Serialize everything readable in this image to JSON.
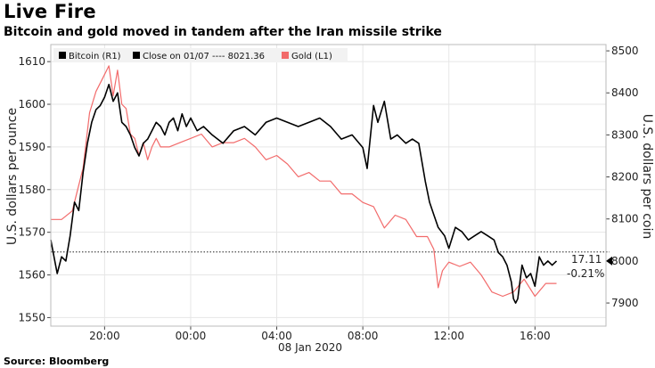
{
  "header": {
    "title": "Live Fire",
    "subtitle": "Bitcoin and gold moved in tandem after the Iran missile strike"
  },
  "footer": {
    "source": "Source: Bloomberg"
  },
  "colors": {
    "bitcoin": "#000000",
    "gold": "#f26b6b",
    "grid": "#e6e6e6",
    "axis": "#444444",
    "legend_bg": "#f2f2f2"
  },
  "legend": {
    "bitcoin": "Bitcoin (R1)",
    "close": "Close on 01/07 ---- 8021.36",
    "gold": "Gold (L1)"
  },
  "annotations": {
    "change": "17.11",
    "change_pct": "-0.21%"
  },
  "chart_data": {
    "type": "line",
    "title": "Live Fire",
    "subtitle": "Bitcoin and gold moved in tandem after the Iran missile strike",
    "x_unit": "hours since 00:00 on 08 Jan 2020 (negative = 07 Jan)",
    "xlim": [
      -6.5,
      19.3
    ],
    "x_ticks": [
      -4,
      0,
      4,
      8,
      12,
      16
    ],
    "x_tick_labels": [
      "20:00",
      "00:00",
      "04:00",
      "08:00",
      "12:00",
      "16:00"
    ],
    "x_date_label": "08 Jan 2020",
    "left_axis": {
      "label": "U.S. dollars per ounce",
      "ylim": [
        1548,
        1614
      ],
      "ticks": [
        1550,
        1560,
        1570,
        1580,
        1590,
        1600,
        1610
      ]
    },
    "right_axis": {
      "label": "U.S. dollars per coin",
      "ylim": [
        7845,
        8515
      ],
      "ticks": [
        7900,
        8000,
        8100,
        8200,
        8300,
        8400,
        8500
      ]
    },
    "reference_line": {
      "axis": "right",
      "value": 8021.36,
      "label": "Close on 01/07"
    },
    "series": [
      {
        "name": "Bitcoin (R1)",
        "axis": "right",
        "color": "#000000",
        "x": [
          -6.5,
          -6.2,
          -6.0,
          -5.8,
          -5.6,
          -5.4,
          -5.2,
          -5.0,
          -4.8,
          -4.6,
          -4.4,
          -4.2,
          -4.0,
          -3.8,
          -3.6,
          -3.4,
          -3.2,
          -3.0,
          -2.8,
          -2.6,
          -2.4,
          -2.2,
          -2.0,
          -1.8,
          -1.6,
          -1.4,
          -1.2,
          -1.0,
          -0.8,
          -0.6,
          -0.4,
          -0.2,
          0.0,
          0.3,
          0.6,
          1.0,
          1.5,
          2.0,
          2.5,
          3.0,
          3.5,
          4.0,
          4.5,
          5.0,
          5.5,
          6.0,
          6.5,
          7.0,
          7.5,
          8.0,
          8.2,
          8.5,
          8.7,
          9.0,
          9.3,
          9.6,
          10.0,
          10.3,
          10.6,
          10.9,
          11.1,
          11.3,
          11.5,
          11.8,
          12.0,
          12.3,
          12.6,
          12.9,
          13.2,
          13.5,
          13.8,
          14.1,
          14.3,
          14.5,
          14.7,
          14.9,
          15.0,
          15.1,
          15.2,
          15.4,
          15.6,
          15.8,
          16.0,
          16.2,
          16.4,
          16.6,
          16.8,
          17.0
        ],
        "y": [
          8050,
          7970,
          8010,
          8000,
          8060,
          8140,
          8120,
          8210,
          8280,
          8330,
          8360,
          8370,
          8390,
          8420,
          8380,
          8400,
          8330,
          8320,
          8300,
          8270,
          8250,
          8280,
          8290,
          8310,
          8330,
          8320,
          8300,
          8330,
          8340,
          8310,
          8350,
          8320,
          8340,
          8310,
          8320,
          8300,
          8280,
          8310,
          8320,
          8300,
          8330,
          8340,
          8330,
          8320,
          8330,
          8340,
          8320,
          8290,
          8300,
          8270,
          8220,
          8370,
          8330,
          8380,
          8290,
          8300,
          8280,
          8290,
          8280,
          8190,
          8140,
          8110,
          8080,
          8060,
          8030,
          8080,
          8070,
          8050,
          8060,
          8070,
          8060,
          8050,
          8020,
          8010,
          7990,
          7950,
          7910,
          7900,
          7910,
          7990,
          7960,
          7970,
          7940,
          8010,
          7990,
          8000,
          7990,
          8000
        ]
      },
      {
        "name": "Gold (L1)",
        "axis": "left",
        "color": "#f26b6b",
        "x": [
          -6.5,
          -6.0,
          -5.5,
          -5.0,
          -4.7,
          -4.4,
          -4.1,
          -3.8,
          -3.6,
          -3.4,
          -3.2,
          -3.0,
          -2.8,
          -2.6,
          -2.4,
          -2.2,
          -2.0,
          -1.8,
          -1.6,
          -1.4,
          -1.0,
          -0.5,
          0.0,
          0.5,
          1.0,
          1.5,
          2.0,
          2.5,
          3.0,
          3.5,
          4.0,
          4.5,
          5.0,
          5.5,
          6.0,
          6.5,
          7.0,
          7.5,
          8.0,
          8.5,
          9.0,
          9.5,
          10.0,
          10.5,
          11.0,
          11.3,
          11.5,
          11.7,
          12.0,
          12.5,
          13.0,
          13.5,
          14.0,
          14.5,
          15.0,
          15.5,
          16.0,
          16.5,
          17.0
        ],
        "y": [
          1573,
          1573,
          1575,
          1585,
          1598,
          1603,
          1606,
          1609,
          1602,
          1608,
          1600,
          1599,
          1593,
          1592,
          1588,
          1591,
          1587,
          1590,
          1592,
          1590,
          1590,
          1591,
          1592,
          1593,
          1590,
          1591,
          1591,
          1592,
          1590,
          1587,
          1588,
          1586,
          1583,
          1584,
          1582,
          1582,
          1579,
          1579,
          1577,
          1576,
          1571,
          1574,
          1573,
          1569,
          1569,
          1566,
          1557,
          1561,
          1563,
          1562,
          1563,
          1560,
          1556,
          1555,
          1556,
          1559,
          1555,
          1558,
          1558
        ]
      }
    ]
  }
}
